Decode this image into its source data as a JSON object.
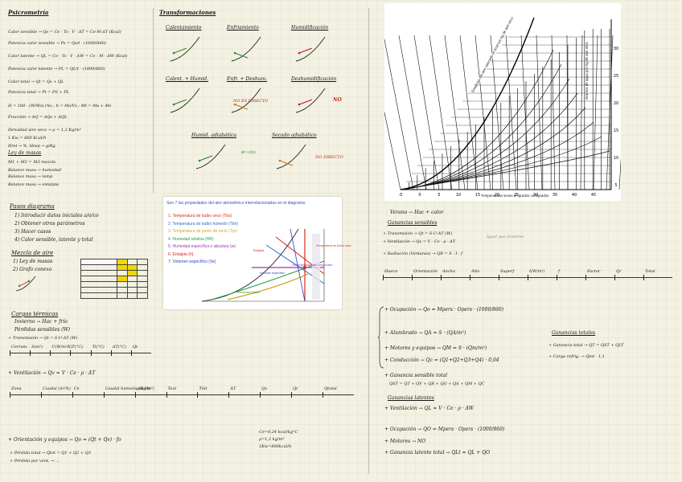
{
  "psicrometria": {
    "title": "Psicrometría",
    "lines": [
      "Calor sensible → Qs = Ce · Ts · V · ΔT = Ce·M·ΔT (Kcal)",
      "Potencia calor sensible → Ps = Qs/t · (1000/860)",
      "Calor latente → QL = Ce · Ts · V · ΔW = Ce · M · ΔW (Kcal)",
      "Potencia calor latente → PL = QL/t · (1000/860)",
      "Calor total → Qt = Qs + QL",
      "Potencia total → Pt = PS + PL",
      "H = 100 · (W/Ws) (%) ;  h = Ms/Vs ;  Mt = Ma + Mv",
      "Fracción → ΔQ = ΔQs + ΔQL",
      "Densidad aire seco → ρ = 1,2 Kg/m³",
      "1 Kw = 860 Kcal/h",
      "Hrel → %,  Hesp → g/Kg",
      "Ley de masas",
      "M1 + M2 = M3 mezcla",
      "Balance masa → humedad",
      "Balance masa → temp",
      "Balance masa → entalpía"
    ]
  },
  "transformaciones": {
    "title": "Transformaciones",
    "items": [
      "Calentamiento",
      "Enfriamiento",
      "Humidificación",
      "Calent. + Humid.",
      "Enfr. + Deshum.",
      "Deshumidificación",
      "Humid. adiabática",
      "Secado adiabático"
    ],
    "notes": [
      "NO ES DIRECTO",
      "NO",
      "NO DIRECTO",
      "Φ=ctte"
    ]
  },
  "pasos": {
    "title": "Pasos diagrama",
    "items": [
      "1) Introducir datos iniciales a/o/co",
      "2) Obtener otros parámetros",
      "3) Hacer casos",
      "4) Calor sensible, latente y total"
    ],
    "mezcla_title": "Mezcla de aire",
    "mezcla_items": [
      "1) Ley de masas",
      "2) Grafo conexo"
    ]
  },
  "card": {
    "heading": "Son 7 las propiedades del aire atmosférico interrelacionadas en el diagrama:",
    "props": [
      {
        "label": "1. Temperatura de bulbo seco (Tbs)",
        "color": "#d42c1e"
      },
      {
        "label": "2. Temperatura de bulbo húmedo (Tbh)",
        "color": "#2d6cc4"
      },
      {
        "label": "3. Temperatura de punto de rocío (Tpr)",
        "color": "#d4a21e"
      },
      {
        "label": "4. Humedad relativa (HR)",
        "color": "#2a9a3c"
      },
      {
        "label": "5. Humedad específica o absoluta (w)",
        "color": "#a82ec4"
      },
      {
        "label": "6. Entalpía (h)",
        "color": "#d4201e"
      },
      {
        "label": "7. Volumen específico (Ve)",
        "color": "#2840c0"
      }
    ],
    "chart_labels": [
      "Temperatura de bulbo seco",
      "Humedad absoluta o específica",
      "Humedad relativa",
      "Entalpía",
      "Volumen específico"
    ]
  },
  "cargas": {
    "title": "Cargas térmicas",
    "invierno": "Invierno → Hac + frío",
    "perdidas": "Pérdidas sensibles (W)",
    "transmision": "+ Transmisión → Qt = S·U·ΔT (W)",
    "table1_headers": [
      "Cerram.",
      "S(m²)",
      "U(W/m²K)",
      "T(°C)",
      "Ti(°C)",
      "ΔT(°C)",
      "Qt"
    ],
    "ventilacion": "+ Ventilación → Qv = V · Ce · ρ · ΔT",
    "table2_headers": [
      "Zona",
      "Caudal (m³/h)",
      "Ce",
      "Caudal humedo (m³/h)",
      "ρ(Kg/m³)",
      "Text",
      "Tint",
      "ΔT",
      "Qv",
      "Qt",
      "Qtotal"
    ],
    "orientacion": "+ Orientación y equipos → Qo = (Qt + Qv) · fo",
    "perdida_total": "+ Pérdida total → Qtot = Q1 + Q2 + Q3",
    "perdida_vent": "+ Pérdida por vent. → ...",
    "small_notes": [
      "Ce=0,24 kcal/kg°C",
      "ρ=1,2 kg/m³",
      "1Kw=860kcal/h"
    ]
  },
  "verano": {
    "title": "Verano → Hac + calor",
    "ganancias_sensibles": "Ganancias sensibles",
    "transmision": "+ Transmisión → Qt = S·U·ΔT (W)",
    "ventilacion": "+ Ventilación → Qv = V · Ce · ρ · ΔT",
    "radiacion": "+ Radiación (Ventanas) → QR = S · I · f",
    "igual_invierno": "Igual que invierno",
    "table_headers": [
      "Hueco",
      "Orientación",
      "Ancho",
      "Alto",
      "Superf.",
      "I(W/m²)",
      "f",
      "Factor",
      "Qr",
      "Total"
    ],
    "ocupacion": "+ Ocupación → Qo = Mpers · Opers · (1000/860)",
    "alumbrado": "+ Alumbrado → QA = S · (QA/m²)",
    "motores": "+ Motores y equipos → QM = S · (Qm/m²)",
    "conduccion": "+ Conducción → Qc = (Q1+Q2+Q3+Q4) · 0,04",
    "ganancia_sensible_total": "+ Ganancia sensible total",
    "gst_formula": "QST = QT + QV + QR + QO + QA + QM + QC",
    "ganancias_latentes": "Ganancias latentes",
    "vent_lat": "+ Ventilación → QL = V · Ce · ρ · ΔW",
    "ocup_lat": "+ Ocupación → QO = Mpers · Opers · (1000/860)",
    "motores_lat": "+ Motores → NO",
    "gl_total": "+ Ganancia latente total → QLt = QL + QO",
    "ganancias_totales": "Ganancias totales",
    "gt_formula": "+ Ganancia total → QT = QST + QLT",
    "carga_refrig": "+ Carga refrig. → Qtot · 1,1"
  },
  "abaco": {
    "x_axis_label": "Temperaturas secas en grados centígrados",
    "y_axis_label": "Gramos de agua por Kg de aire seco",
    "diag_label": "Entalpías del aire saturado en kcal por kg de aire seco"
  }
}
